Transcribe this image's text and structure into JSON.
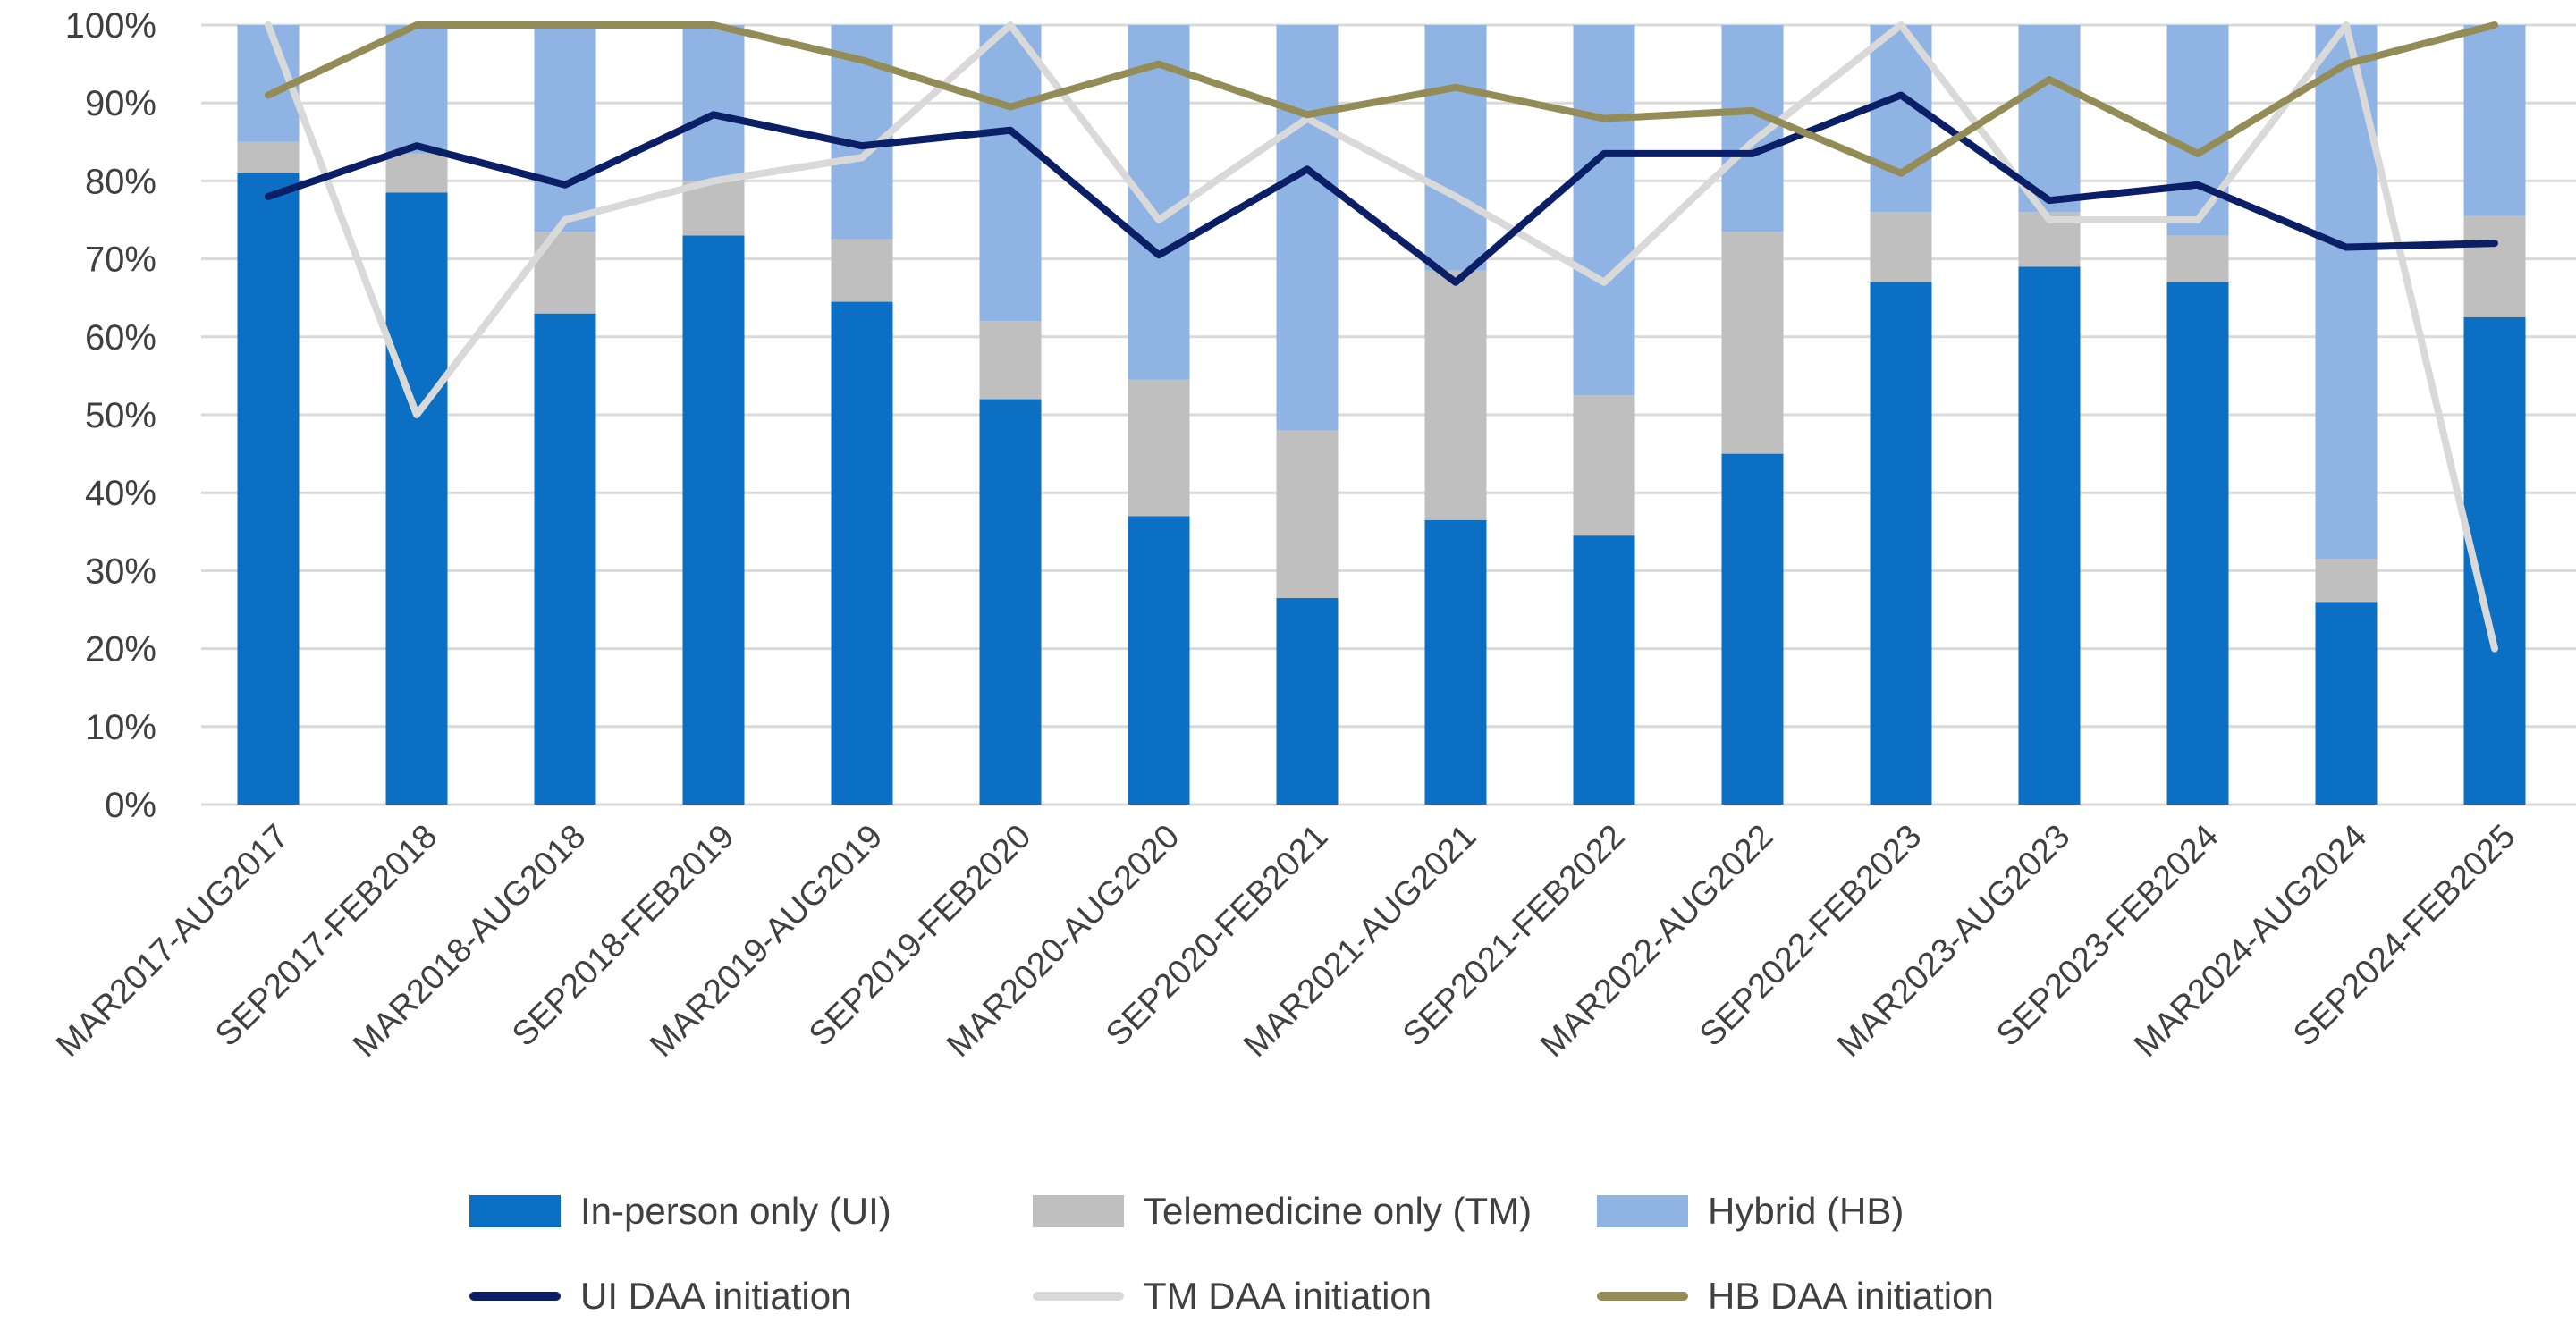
{
  "chart_data": {
    "type": "bar",
    "subtype": "stacked-percent-with-lines",
    "categories": [
      "MAR2017-AUG2017",
      "SEP2017-FEB2018",
      "MAR2018-AUG2018",
      "SEP2018-FEB2019",
      "MAR2019-AUG2019",
      "SEP2019-FEB2020",
      "MAR2020-AUG2020",
      "SEP2020-FEB2021",
      "MAR2021-AUG2021",
      "SEP2021-FEB2022",
      "MAR2022-AUG2022",
      "SEP2022-FEB2023",
      "MAR2023-AUG2023",
      "SEP2023-FEB2024",
      "MAR2024-AUG2024",
      "SEP2024-FEB2025"
    ],
    "ylim": [
      0,
      100
    ],
    "yticks": [
      "0%",
      "10%",
      "20%",
      "30%",
      "40%",
      "50%",
      "60%",
      "70%",
      "80%",
      "90%",
      "100%"
    ],
    "bar_series": [
      {
        "name": "In-person only (UI)",
        "color": "#0B6FC4",
        "values": [
          81,
          78.5,
          63,
          73,
          64.5,
          52,
          37,
          26.5,
          36.5,
          34.5,
          45,
          67,
          69,
          67,
          26,
          62.5
        ]
      },
      {
        "name": "Telemedicine only (TM)",
        "color": "#BFBFBF",
        "values": [
          4,
          5,
          10.5,
          7,
          8,
          10,
          17.5,
          21.5,
          32,
          18,
          28.5,
          9,
          7,
          6,
          5.5,
          13
        ]
      },
      {
        "name": "Hybrid (HB)",
        "color": "#8FB4E3",
        "values": [
          15,
          16.5,
          26.5,
          20,
          27.5,
          38,
          45.5,
          52,
          31.5,
          47.5,
          26.5,
          24,
          24,
          27,
          68.5,
          24.5
        ]
      }
    ],
    "line_series": [
      {
        "name": "UI DAA initiation",
        "color": "#0B1F66",
        "values": [
          78,
          84.5,
          79.5,
          88.5,
          84.5,
          86.5,
          70.5,
          81.5,
          67,
          83.5,
          83.5,
          91,
          77.5,
          79.5,
          71.5,
          72
        ]
      },
      {
        "name": "TM DAA initiation",
        "color": "#D9D9D9",
        "values": [
          100,
          50,
          75,
          80,
          83,
          100,
          75,
          88,
          78,
          67,
          85,
          100,
          75,
          75,
          100,
          20
        ]
      },
      {
        "name": "HB DAA initiation",
        "color": "#948C57",
        "values": [
          91,
          100,
          100,
          100,
          95.5,
          89.5,
          95,
          88.5,
          92,
          88,
          89,
          81,
          93,
          83.5,
          95,
          100
        ]
      }
    ],
    "legend": [
      {
        "label": "In-person only (UI)",
        "kind": "box",
        "color": "#0B6FC4"
      },
      {
        "label": "Telemedicine only (TM)",
        "kind": "box",
        "color": "#BFBFBF"
      },
      {
        "label": "Hybrid (HB)",
        "kind": "box",
        "color": "#8FB4E3"
      },
      {
        "label": "UI DAA initiation",
        "kind": "line",
        "color": "#0B1F66"
      },
      {
        "label": "TM DAA initiation",
        "kind": "line",
        "color": "#D9D9D9"
      },
      {
        "label": "HB DAA initiation",
        "kind": "line",
        "color": "#948C57"
      }
    ],
    "grid": true,
    "legend_position": "bottom",
    "title": "",
    "xlabel": "",
    "ylabel": ""
  }
}
